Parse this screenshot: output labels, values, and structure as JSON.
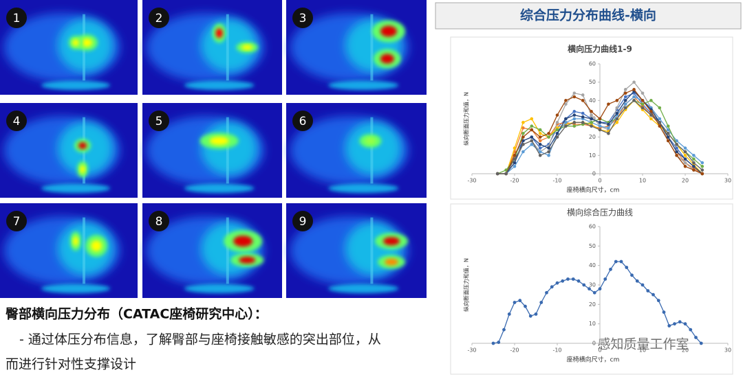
{
  "panels": [
    "1",
    "2",
    "3",
    "4",
    "5",
    "6",
    "7",
    "8",
    "9"
  ],
  "caption": {
    "heading": "臀部横向压力分布（CATAC座椅研究中心）：",
    "lines": [
      "- 通过体压分布信息，了解臀部与座椅接触敏感的突出部位，从",
      "而进行针对性支撑设计"
    ]
  },
  "header": {
    "title": "综合压力分布曲线-横向"
  },
  "watermark": "感知质量工作室",
  "chart_data": [
    {
      "type": "line",
      "title": "横向压力曲线1-9",
      "x_label": "座椅横向尺寸，cm",
      "y_label": "纵向断面压力和值，N",
      "xlim": [
        -30,
        30
      ],
      "xticks": [
        -30,
        -20,
        -10,
        0,
        10,
        20,
        30
      ],
      "ylim": [
        0,
        60
      ],
      "yticks": [
        0,
        10,
        20,
        30,
        40,
        50,
        60
      ],
      "x": [
        -24,
        -22,
        -20,
        -18,
        -16,
        -14,
        -12,
        -10,
        -8,
        -6,
        -4,
        -2,
        0,
        2,
        4,
        6,
        8,
        10,
        12,
        14,
        16,
        18,
        20,
        22,
        24
      ],
      "series": [
        {
          "color": "#4472c4",
          "values": [
            0,
            0,
            10,
            18,
            20,
            14,
            16,
            25,
            30,
            34,
            33,
            30,
            28,
            28,
            35,
            42,
            44,
            38,
            33,
            28,
            20,
            14,
            8,
            4,
            0
          ]
        },
        {
          "color": "#ed7d31",
          "values": [
            0,
            0,
            12,
            25,
            24,
            18,
            20,
            27,
            28,
            27,
            27,
            26,
            25,
            26,
            30,
            38,
            42,
            37,
            32,
            27,
            20,
            12,
            6,
            3,
            0
          ]
        },
        {
          "color": "#a5a5a5",
          "values": [
            0,
            0,
            6,
            16,
            18,
            12,
            15,
            28,
            38,
            44,
            43,
            32,
            26,
            24,
            36,
            46,
            50,
            44,
            36,
            28,
            18,
            10,
            6,
            2,
            0
          ]
        },
        {
          "color": "#ffc000",
          "values": [
            0,
            0,
            14,
            28,
            30,
            22,
            20,
            25,
            27,
            28,
            28,
            27,
            24,
            23,
            28,
            35,
            40,
            35,
            30,
            26,
            22,
            16,
            10,
            5,
            0
          ]
        },
        {
          "color": "#5b9bd5",
          "values": [
            0,
            0,
            4,
            12,
            16,
            12,
            10,
            22,
            28,
            30,
            30,
            28,
            26,
            25,
            32,
            38,
            42,
            40,
            36,
            30,
            24,
            18,
            14,
            10,
            6
          ]
        },
        {
          "color": "#70ad47",
          "values": [
            0,
            2,
            8,
            22,
            26,
            24,
            20,
            24,
            26,
            26,
            27,
            28,
            30,
            28,
            30,
            36,
            40,
            38,
            40,
            36,
            26,
            16,
            12,
            8,
            4
          ]
        },
        {
          "color": "#264478",
          "values": [
            0,
            0,
            6,
            18,
            20,
            16,
            14,
            22,
            30,
            32,
            31,
            30,
            28,
            27,
            33,
            40,
            45,
            40,
            35,
            28,
            20,
            12,
            8,
            4,
            0
          ]
        },
        {
          "color": "#9e480e",
          "values": [
            0,
            0,
            10,
            20,
            24,
            20,
            22,
            32,
            40,
            42,
            40,
            34,
            30,
            38,
            40,
            44,
            46,
            40,
            34,
            26,
            18,
            10,
            4,
            2,
            0
          ]
        },
        {
          "color": "#636363",
          "values": [
            0,
            0,
            8,
            16,
            18,
            10,
            12,
            20,
            26,
            28,
            28,
            26,
            24,
            22,
            30,
            36,
            40,
            36,
            32,
            28,
            22,
            16,
            12,
            6,
            2
          ]
        }
      ]
    },
    {
      "type": "line",
      "title": "横向综合压力曲线",
      "x_label": "座椅横向尺寸，cm",
      "y_label": "纵向断面压力和值，N",
      "xlim": [
        -30,
        30
      ],
      "xticks": [
        -30,
        -20,
        -10,
        0,
        10,
        20,
        30
      ],
      "ylim": [
        0,
        60
      ],
      "yticks": [
        0,
        10,
        20,
        30,
        40,
        50,
        60
      ],
      "x": [
        -25,
        -23.75,
        -22.5,
        -21.25,
        -20,
        -18.75,
        -17.5,
        -16.25,
        -15,
        -13.75,
        -12.5,
        -11.25,
        -10,
        -8.75,
        -7.5,
        -6.25,
        -5,
        -3.75,
        -2.5,
        -1.25,
        0,
        1.25,
        2.5,
        3.75,
        5,
        6.25,
        7.5,
        8.75,
        10,
        11.25,
        12.5,
        13.75,
        15,
        16.25,
        17.5,
        18.75,
        20,
        21.25,
        22.5,
        23.75
      ],
      "color": "#3a6ab0",
      "values": [
        0,
        0.5,
        7,
        15,
        21,
        22,
        19,
        14,
        15,
        21,
        26,
        29,
        31,
        32,
        33,
        33,
        32,
        30,
        28,
        26,
        28,
        33,
        38,
        42,
        42,
        39,
        35,
        32,
        30,
        27,
        25,
        22,
        16,
        9,
        10,
        11,
        10,
        7,
        3,
        0
      ]
    }
  ]
}
